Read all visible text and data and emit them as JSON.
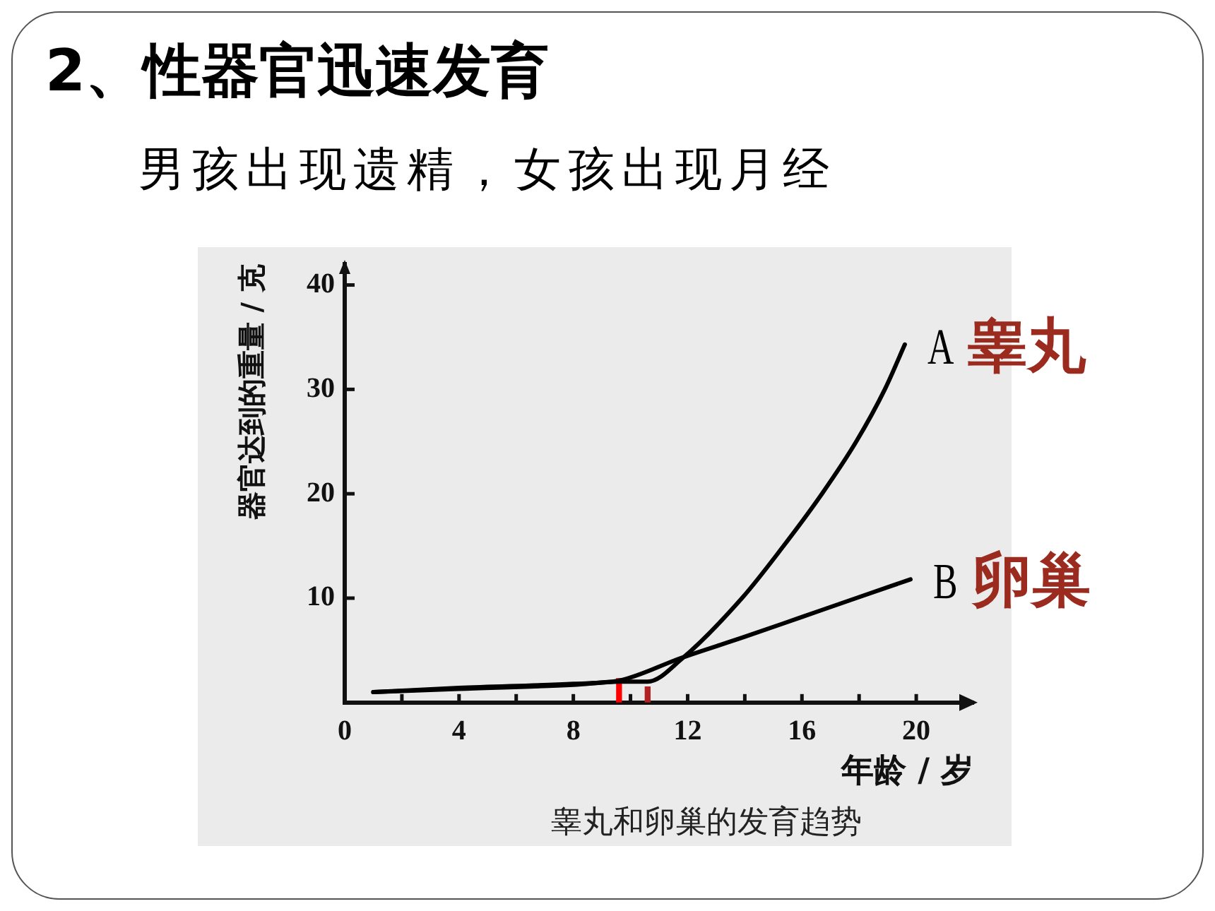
{
  "chart_data": {
    "type": "line",
    "title": "2、性器官迅速发育",
    "subtitle": "男孩出现遗精，女孩出现月经",
    "xlabel": "年龄 / 岁",
    "ylabel": "器官达到的重量 / 克",
    "annotations": [
      "睾丸和卵巢的发育趋势"
    ],
    "series": [
      {
        "name": "A 睾丸",
        "color": "#000000",
        "x": [
          1,
          4,
          8,
          9.6,
          10.6,
          11.8,
          13.9,
          15.3,
          16.7,
          17.9,
          18.9,
          19.6
        ],
        "values": [
          1,
          1.3,
          1.7,
          2,
          2,
          4.2,
          10,
          14.8,
          20,
          25,
          30,
          34.3
        ]
      },
      {
        "name": "B 卵巢",
        "color": "#000000",
        "x": [
          1,
          4,
          8,
          9.6,
          11.8,
          14,
          16,
          18,
          19.8
        ],
        "values": [
          1,
          1.4,
          1.8,
          2.1,
          4.3,
          6.3,
          8.2,
          10.1,
          11.8
        ]
      },
      {
        "type": "bar",
        "color": "#ff0000",
        "x": [
          9.6
        ],
        "values": [
          2.3
        ]
      },
      {
        "type": "bar",
        "color": "#b22222",
        "x": [
          10.6
        ],
        "values": [
          1.5
        ]
      }
    ],
    "xlim": [
      0,
      22
    ],
    "ylim": [
      0,
      42
    ],
    "xticks": [
      0,
      {
        "value": 2,
        "label": null
      },
      4,
      {
        "value": 6,
        "label": null
      },
      8,
      {
        "value": 10,
        "label": null
      },
      12,
      {
        "value": 14,
        "label": null
      },
      16,
      {
        "value": 18,
        "label": null
      },
      20
    ],
    "yticks": [
      10,
      20,
      30,
      40
    ],
    "marker": "none"
  }
}
